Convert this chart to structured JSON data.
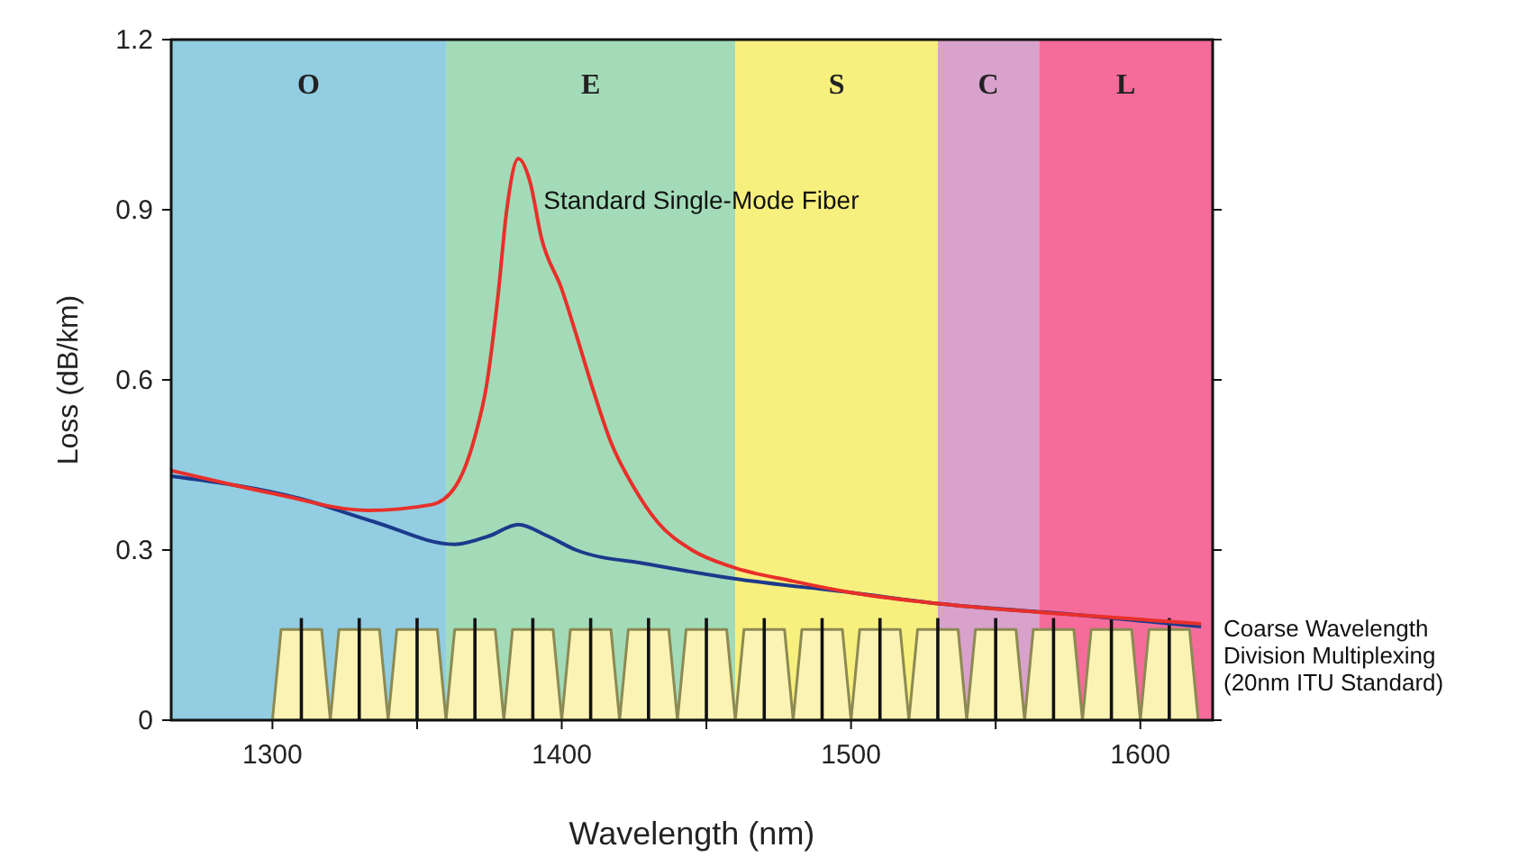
{
  "chart_data": {
    "type": "line",
    "xlabel": "Wavelength (nm)",
    "ylabel": "Loss (dB/km)",
    "xlim": [
      1265,
      1625
    ],
    "ylim": [
      0,
      1.2
    ],
    "xticks": [
      1300,
      {
        "value": 1350,
        "label": null
      },
      1400,
      {
        "value": 1450,
        "label": null
      },
      1500,
      {
        "value": 1550,
        "label": null
      },
      1600
    ],
    "yticks": [
      0,
      0.3,
      0.6,
      0.9,
      1.2
    ],
    "grid": false,
    "marker": "none",
    "line_style": "solid",
    "bands": [
      {
        "axis": "x",
        "from": 1265,
        "to": 1360,
        "label": "O",
        "color": "#92cde2"
      },
      {
        "axis": "x",
        "from": 1360,
        "to": 1460,
        "label": "E",
        "color": "#a3dbb8"
      },
      {
        "axis": "x",
        "from": 1460,
        "to": 1530,
        "label": "S",
        "color": "#f8f07e"
      },
      {
        "axis": "x",
        "from": 1530,
        "to": 1565,
        "label": "C",
        "color": "#d8a2cc"
      },
      {
        "axis": "x",
        "from": 1565,
        "to": 1625,
        "label": "L",
        "color": "#f56c9a"
      }
    ],
    "series": [
      {
        "name": "Coarse Wavelength Division Multiplexing (20nm ITU Standard)",
        "type": "area",
        "color": "#fbf3b4",
        "x": [
          1300,
          1303,
          1317,
          1320,
          1323,
          1337,
          1340,
          1343,
          1357,
          1360,
          1363,
          1377,
          1380,
          1383,
          1397,
          1400,
          1403,
          1417,
          1420,
          1423,
          1437,
          1440,
          1443,
          1457,
          1460,
          1463,
          1477,
          1480,
          1483,
          1497,
          1500,
          1503,
          1517,
          1520,
          1523,
          1537,
          1540,
          1543,
          1557,
          1560,
          1563,
          1577,
          1580,
          1583,
          1597,
          1600,
          1603,
          1617,
          1620
        ],
        "values": [
          0,
          0.16,
          0.16,
          0,
          0.16,
          0.16,
          0,
          0.16,
          0.16,
          0,
          0.16,
          0.16,
          0,
          0.16,
          0.16,
          0,
          0.16,
          0.16,
          0,
          0.16,
          0.16,
          0,
          0.16,
          0.16,
          0,
          0.16,
          0.16,
          0,
          0.16,
          0.16,
          0,
          0.16,
          0.16,
          0,
          0.16,
          0.16,
          0,
          0.16,
          0.16,
          0,
          0.16,
          0.16,
          0,
          0.16,
          0.16,
          0,
          0.16,
          0.16,
          0
        ]
      },
      {
        "type": "bar",
        "color": "#111111",
        "x": [
          1310,
          1330,
          1350,
          1370,
          1390,
          1410,
          1430,
          1450,
          1470,
          1490,
          1510,
          1530,
          1550,
          1570,
          1590,
          1610
        ],
        "values": [
          0.18,
          0.18,
          0.18,
          0.18,
          0.18,
          0.18,
          0.18,
          0.18,
          0.18,
          0.18,
          0.18,
          0.18,
          0.18,
          0.18,
          0.18,
          0.18
        ]
      },
      {
        "color": "#1c3a8c",
        "x": [
          1265,
          1310,
          1335,
          1363,
          1375,
          1385,
          1395,
          1405,
          1430,
          1459,
          1500,
          1531,
          1580,
          1621
        ],
        "values": [
          0.43,
          0.39,
          0.35,
          0.31,
          0.325,
          0.345,
          0.325,
          0.3,
          0.275,
          0.25,
          0.225,
          0.205,
          0.185,
          0.165
        ]
      },
      {
        "name": "Standard Single-Mode Fiber",
        "color": "#e8302a",
        "x": [
          1265,
          1300,
          1333,
          1355,
          1363,
          1370,
          1374,
          1378,
          1381,
          1385,
          1389,
          1393,
          1400,
          1405,
          1411,
          1417,
          1425,
          1433,
          1445,
          1459,
          1480,
          1500,
          1531,
          1580,
          1621
        ],
        "values": [
          0.44,
          0.4,
          0.37,
          0.38,
          0.41,
          0.5,
          0.59,
          0.75,
          0.9,
          0.99,
          0.95,
          0.85,
          0.76,
          0.68,
          0.58,
          0.49,
          0.41,
          0.35,
          0.3,
          0.27,
          0.245,
          0.225,
          0.205,
          0.185,
          0.17
        ]
      }
    ]
  }
}
